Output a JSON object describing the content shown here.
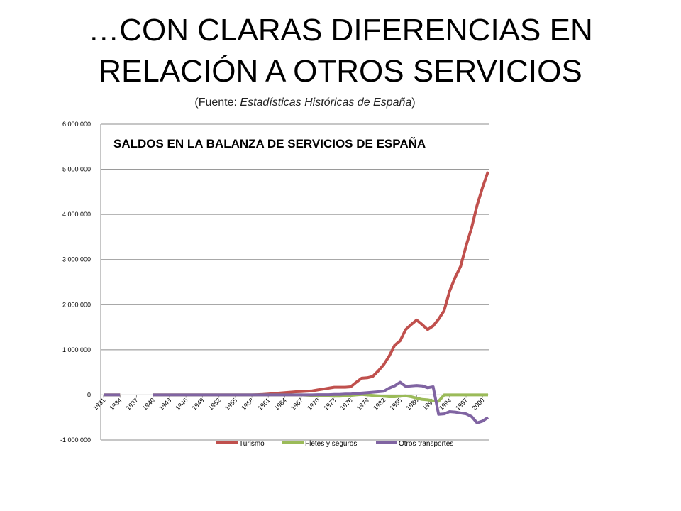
{
  "slide": {
    "title_line1": "…CON CLARAS DIFERENCIAS EN",
    "title_line2": "RELACIÓN A OTROS SERVICIOS",
    "source_prefix": "(Fuente: ",
    "source_name": "Estadísticas Históricas de España",
    "source_suffix": ")"
  },
  "chart_data": {
    "type": "line",
    "title": "SALDOS EN LA BALANZA DE SERVICIOS DE ESPAÑA",
    "xlabel": "",
    "ylabel": "",
    "ylim": [
      -1000000,
      6000000
    ],
    "y_ticks": [
      -1000000,
      0,
      1000000,
      2000000,
      3000000,
      4000000,
      5000000,
      6000000
    ],
    "y_tick_labels": [
      "-1 000 000",
      "0",
      "1 000 000",
      "2 000 000",
      "3 000 000",
      "4 000 000",
      "5 000 000",
      "6 000 000"
    ],
    "x_range": [
      1931,
      2001
    ],
    "x_ticks": [
      1931,
      1934,
      1937,
      1940,
      1943,
      1946,
      1949,
      1952,
      1955,
      1958,
      1961,
      1964,
      1967,
      1970,
      1973,
      1976,
      1979,
      1982,
      1985,
      1988,
      1991,
      1994,
      1997,
      2000
    ],
    "x_tick_labels": [
      "1931",
      "1934",
      "1937",
      "1940",
      "1943",
      "1946",
      "1949",
      "1952",
      "1955",
      "1958",
      "1961",
      "1964",
      "1967",
      "1970",
      "1973",
      "1976",
      "1979",
      "1982",
      "1985",
      "1988",
      "1991",
      "1994",
      "1997",
      "2000"
    ],
    "grid": true,
    "legend_position": "bottom",
    "series": [
      {
        "name": "Turismo",
        "color": "#c0504d",
        "segments": [
          [
            [
              1931,
              0
            ],
            [
              1932,
              0
            ],
            [
              1933,
              0
            ],
            [
              1934,
              0
            ]
          ],
          [
            [
              1940,
              0
            ],
            [
              1941,
              0
            ],
            [
              1942,
              0
            ],
            [
              1943,
              0
            ],
            [
              1944,
              0
            ],
            [
              1945,
              0
            ],
            [
              1946,
              0
            ],
            [
              1947,
              0
            ],
            [
              1948,
              0
            ],
            [
              1949,
              0
            ],
            [
              1950,
              0
            ],
            [
              1951,
              0
            ],
            [
              1952,
              0
            ],
            [
              1953,
              0
            ],
            [
              1954,
              0
            ],
            [
              1955,
              0
            ],
            [
              1956,
              0
            ],
            [
              1957,
              0
            ],
            [
              1958,
              0
            ],
            [
              1959,
              5000
            ],
            [
              1960,
              10000
            ],
            [
              1961,
              20000
            ],
            [
              1962,
              30000
            ],
            [
              1963,
              40000
            ],
            [
              1964,
              50000
            ],
            [
              1965,
              60000
            ],
            [
              1966,
              70000
            ],
            [
              1967,
              75000
            ],
            [
              1968,
              80000
            ],
            [
              1969,
              90000
            ],
            [
              1970,
              110000
            ],
            [
              1971,
              130000
            ],
            [
              1972,
              150000
            ],
            [
              1973,
              170000
            ],
            [
              1974,
              170000
            ],
            [
              1975,
              170000
            ],
            [
              1976,
              180000
            ],
            [
              1977,
              280000
            ],
            [
              1978,
              370000
            ],
            [
              1979,
              380000
            ],
            [
              1980,
              410000
            ],
            [
              1981,
              530000
            ],
            [
              1982,
              670000
            ],
            [
              1983,
              860000
            ],
            [
              1984,
              1100000
            ],
            [
              1985,
              1200000
            ],
            [
              1986,
              1450000
            ],
            [
              1987,
              1560000
            ],
            [
              1988,
              1660000
            ],
            [
              1989,
              1560000
            ],
            [
              1990,
              1450000
            ],
            [
              1991,
              1530000
            ],
            [
              1992,
              1680000
            ],
            [
              1993,
              1870000
            ],
            [
              1994,
              2300000
            ],
            [
              1995,
              2600000
            ],
            [
              1996,
              2850000
            ],
            [
              1997,
              3300000
            ],
            [
              1998,
              3700000
            ],
            [
              1999,
              4200000
            ],
            [
              2000,
              4600000
            ],
            [
              2001,
              4950000
            ]
          ]
        ]
      },
      {
        "name": "Fletes y seguros",
        "color": "#9bbb59",
        "segments": [
          [
            [
              1931,
              0
            ],
            [
              1932,
              0
            ],
            [
              1933,
              0
            ],
            [
              1934,
              0
            ]
          ],
          [
            [
              1940,
              0
            ],
            [
              1941,
              0
            ],
            [
              1942,
              0
            ],
            [
              1943,
              0
            ],
            [
              1944,
              0
            ],
            [
              1945,
              0
            ],
            [
              1946,
              0
            ],
            [
              1947,
              0
            ],
            [
              1948,
              0
            ],
            [
              1949,
              0
            ],
            [
              1950,
              0
            ],
            [
              1951,
              0
            ],
            [
              1952,
              0
            ],
            [
              1953,
              0
            ],
            [
              1954,
              0
            ],
            [
              1955,
              0
            ],
            [
              1956,
              0
            ],
            [
              1957,
              0
            ],
            [
              1958,
              0
            ],
            [
              1959,
              0
            ],
            [
              1960,
              0
            ],
            [
              1961,
              0
            ],
            [
              1962,
              0
            ],
            [
              1963,
              0
            ],
            [
              1964,
              0
            ],
            [
              1965,
              0
            ],
            [
              1966,
              0
            ],
            [
              1967,
              0
            ],
            [
              1968,
              -5000
            ],
            [
              1969,
              -10000
            ],
            [
              1970,
              -15000
            ],
            [
              1971,
              -20000
            ],
            [
              1972,
              -25000
            ],
            [
              1973,
              -30000
            ],
            [
              1974,
              -30000
            ],
            [
              1975,
              -20000
            ],
            [
              1976,
              -10000
            ],
            [
              1977,
              0
            ],
            [
              1978,
              10000
            ],
            [
              1979,
              0
            ],
            [
              1980,
              -10000
            ],
            [
              1981,
              -20000
            ],
            [
              1982,
              -30000
            ],
            [
              1983,
              -40000
            ],
            [
              1984,
              -40000
            ],
            [
              1985,
              -30000
            ],
            [
              1986,
              -20000
            ],
            [
              1987,
              -40000
            ],
            [
              1988,
              -70000
            ],
            [
              1989,
              -100000
            ],
            [
              1990,
              -110000
            ],
            [
              1991,
              -130000
            ],
            [
              1992,
              -140000
            ],
            [
              1993,
              0
            ],
            [
              1994,
              0
            ],
            [
              1995,
              0
            ],
            [
              1996,
              0
            ],
            [
              1997,
              0
            ],
            [
              1998,
              0
            ],
            [
              1999,
              0
            ],
            [
              2000,
              0
            ],
            [
              2001,
              0
            ]
          ]
        ]
      },
      {
        "name": "Otros transportes",
        "color": "#8064a2",
        "segments": [
          [
            [
              1931,
              0
            ],
            [
              1932,
              0
            ],
            [
              1933,
              0
            ],
            [
              1934,
              0
            ]
          ],
          [
            [
              1940,
              0
            ],
            [
              1941,
              0
            ],
            [
              1942,
              0
            ],
            [
              1943,
              0
            ],
            [
              1944,
              0
            ],
            [
              1945,
              0
            ],
            [
              1946,
              0
            ],
            [
              1947,
              0
            ],
            [
              1948,
              0
            ],
            [
              1949,
              0
            ],
            [
              1950,
              0
            ],
            [
              1951,
              0
            ],
            [
              1952,
              0
            ],
            [
              1953,
              0
            ],
            [
              1954,
              0
            ],
            [
              1955,
              0
            ],
            [
              1956,
              0
            ],
            [
              1957,
              0
            ],
            [
              1958,
              0
            ],
            [
              1959,
              0
            ],
            [
              1960,
              0
            ],
            [
              1961,
              0
            ],
            [
              1962,
              0
            ],
            [
              1963,
              0
            ],
            [
              1964,
              0
            ],
            [
              1965,
              0
            ],
            [
              1966,
              0
            ],
            [
              1967,
              0
            ],
            [
              1968,
              0
            ],
            [
              1969,
              0
            ],
            [
              1970,
              5000
            ],
            [
              1971,
              5000
            ],
            [
              1972,
              5000
            ],
            [
              1973,
              10000
            ],
            [
              1974,
              10000
            ],
            [
              1975,
              20000
            ],
            [
              1976,
              20000
            ],
            [
              1977,
              30000
            ],
            [
              1978,
              40000
            ],
            [
              1979,
              50000
            ],
            [
              1980,
              60000
            ],
            [
              1981,
              70000
            ],
            [
              1982,
              80000
            ],
            [
              1983,
              150000
            ],
            [
              1984,
              200000
            ],
            [
              1985,
              280000
            ],
            [
              1986,
              190000
            ],
            [
              1987,
              200000
            ],
            [
              1988,
              210000
            ],
            [
              1989,
              200000
            ],
            [
              1990,
              160000
            ],
            [
              1991,
              180000
            ],
            [
              1992,
              -430000
            ],
            [
              1993,
              -420000
            ],
            [
              1994,
              -370000
            ],
            [
              1995,
              -380000
            ],
            [
              1996,
              -400000
            ],
            [
              1997,
              -420000
            ],
            [
              1998,
              -480000
            ],
            [
              1999,
              -620000
            ],
            [
              2000,
              -580000
            ],
            [
              2001,
              -500000
            ]
          ]
        ]
      }
    ]
  }
}
